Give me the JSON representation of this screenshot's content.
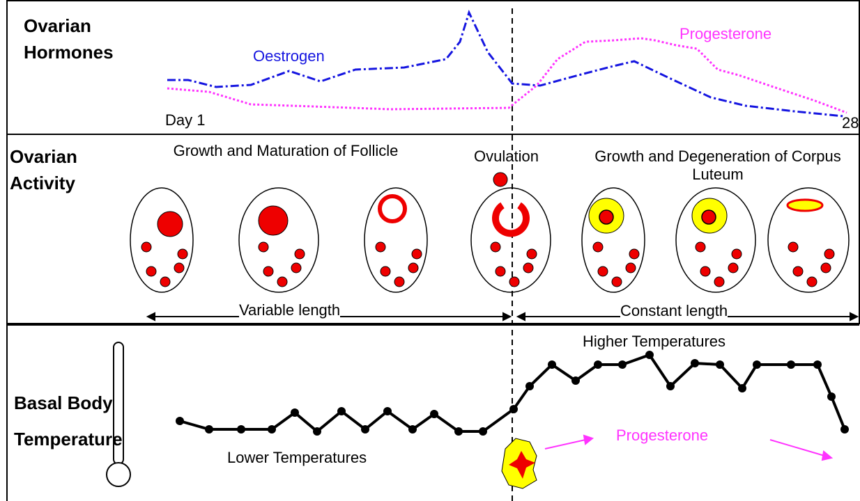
{
  "hormones": {
    "title": "Ovarian Hormones",
    "oestrogen": "Oestrogen",
    "progesterone": "Progesterone",
    "day_start": "Day 1",
    "day_end": "28"
  },
  "activity": {
    "title": "Ovarian Activity",
    "follicle": "Growth and Maturation of Follicle",
    "ovulation": "Ovulation",
    "corpus": "Growth and Degeneration of Corpus Luteum",
    "variable": "Variable length",
    "constant": "Constant length"
  },
  "temperature": {
    "title": "Basal Body Temperature",
    "higher": "Higher Temperatures",
    "lower": "Lower Temperatures",
    "progesterone": "Progesterone"
  }
}
